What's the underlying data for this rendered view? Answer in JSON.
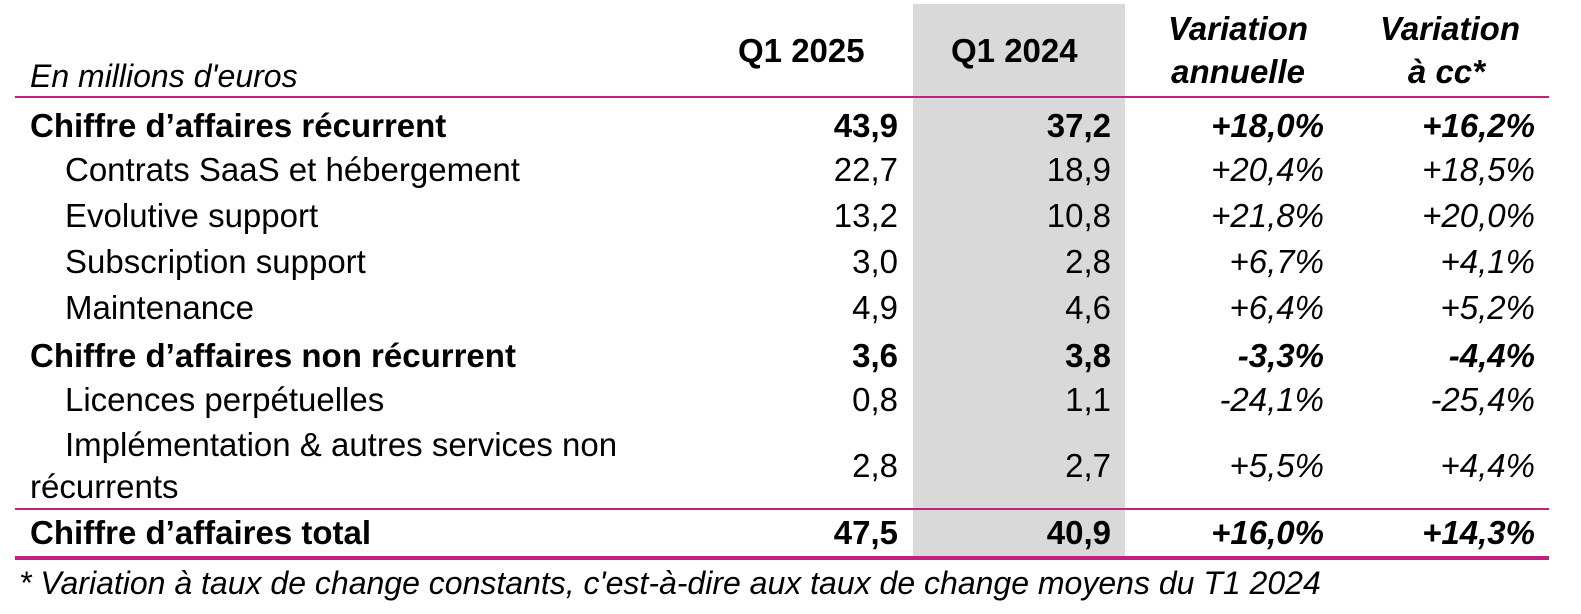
{
  "table": {
    "unit_label": "En millions d'euros",
    "headers": {
      "q1_2025": "Q1 2025",
      "q1_2024": "Q1 2024",
      "var_annual_1": "Variation",
      "var_annual_2": "annuelle",
      "var_cc_1": "Variation",
      "var_cc_2": "à cc*"
    },
    "rows": [
      {
        "label": "Chiffre d’affaires récurrent",
        "q1_2025": "43,9",
        "q1_2024": "37,2",
        "var_annual": "+18,0%",
        "var_cc": "+16,2%"
      },
      {
        "label": "Contrats SaaS et hébergement",
        "q1_2025": "22,7",
        "q1_2024": "18,9",
        "var_annual": "+20,4%",
        "var_cc": "+18,5%"
      },
      {
        "label": "Evolutive support",
        "q1_2025": "13,2",
        "q1_2024": "10,8",
        "var_annual": "+21,8%",
        "var_cc": "+20,0%"
      },
      {
        "label": "Subscription support",
        "q1_2025": "3,0",
        "q1_2024": "2,8",
        "var_annual": "+6,7%",
        "var_cc": "+4,1%"
      },
      {
        "label": "Maintenance",
        "q1_2025": "4,9",
        "q1_2024": "4,6",
        "var_annual": "+6,4%",
        "var_cc": "+5,2%"
      },
      {
        "label": "Chiffre d’affaires non récurrent",
        "q1_2025": "3,6",
        "q1_2024": "3,8",
        "var_annual": "-3,3%",
        "var_cc": "-4,4%"
      },
      {
        "label": "Licences perpétuelles",
        "q1_2025": "0,8",
        "q1_2024": "1,1",
        "var_annual": "-24,1%",
        "var_cc": "-25,4%"
      },
      {
        "label_line1": "Implémentation & autres services non",
        "label_line2": "récurrents",
        "q1_2025": "2,8",
        "q1_2024": "2,7",
        "var_annual": "+5,5%",
        "var_cc": "+4,4%"
      },
      {
        "label": "Chiffre d’affaires total",
        "q1_2025": "47,5",
        "q1_2024": "40,9",
        "var_annual": "+16,0%",
        "var_cc": "+14,3%"
      }
    ],
    "footnote": "* Variation à taux de change constants, c'est-à-dire aux taux de change moyens du T1 2024",
    "accent_color": "#c0207f",
    "shade_color": "#d9d9d9"
  }
}
